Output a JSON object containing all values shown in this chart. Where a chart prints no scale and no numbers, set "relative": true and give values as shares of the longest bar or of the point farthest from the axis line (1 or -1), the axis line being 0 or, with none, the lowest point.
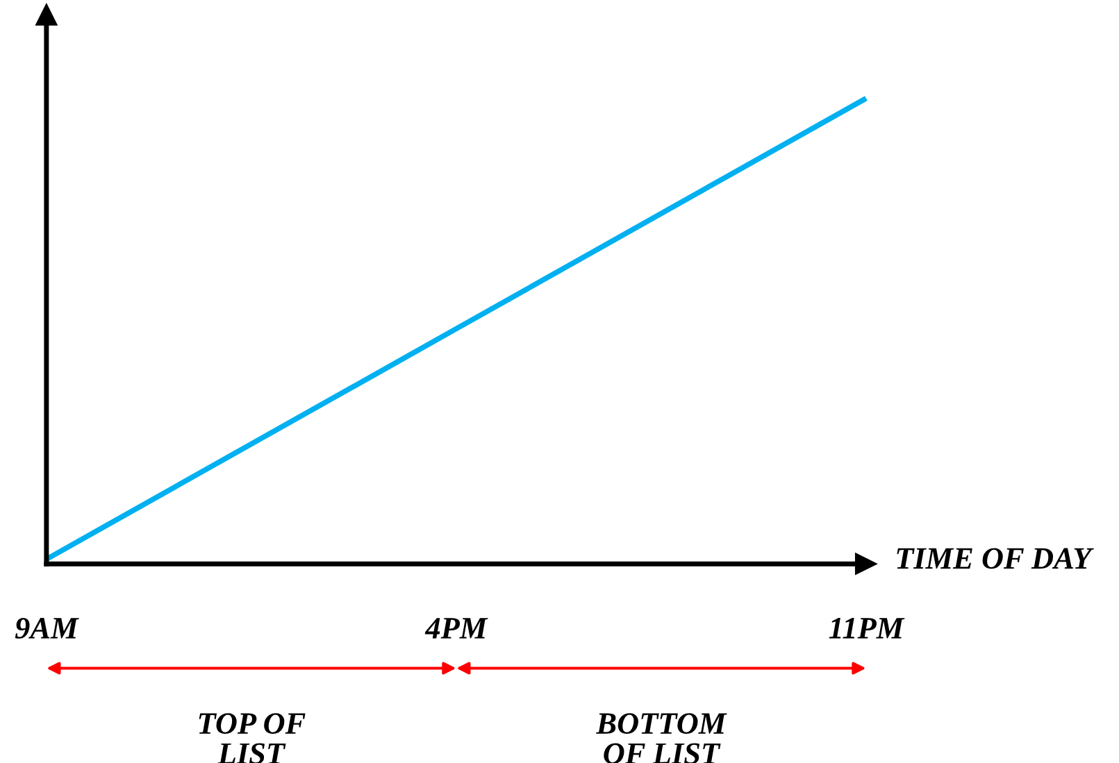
{
  "chart_data": {
    "type": "line",
    "relative": true,
    "xlabel": "TIME OF DAY",
    "categories": [
      "9AM",
      "4PM",
      "11PM"
    ],
    "series": [
      {
        "color": "#00b0f0",
        "values": [
          0.01,
          0.505,
          1
        ]
      }
    ],
    "annotations": [
      "TOP OF\nLIST",
      "BOTTOM\nOF LIST"
    ],
    "tick_labels": "x"
  }
}
